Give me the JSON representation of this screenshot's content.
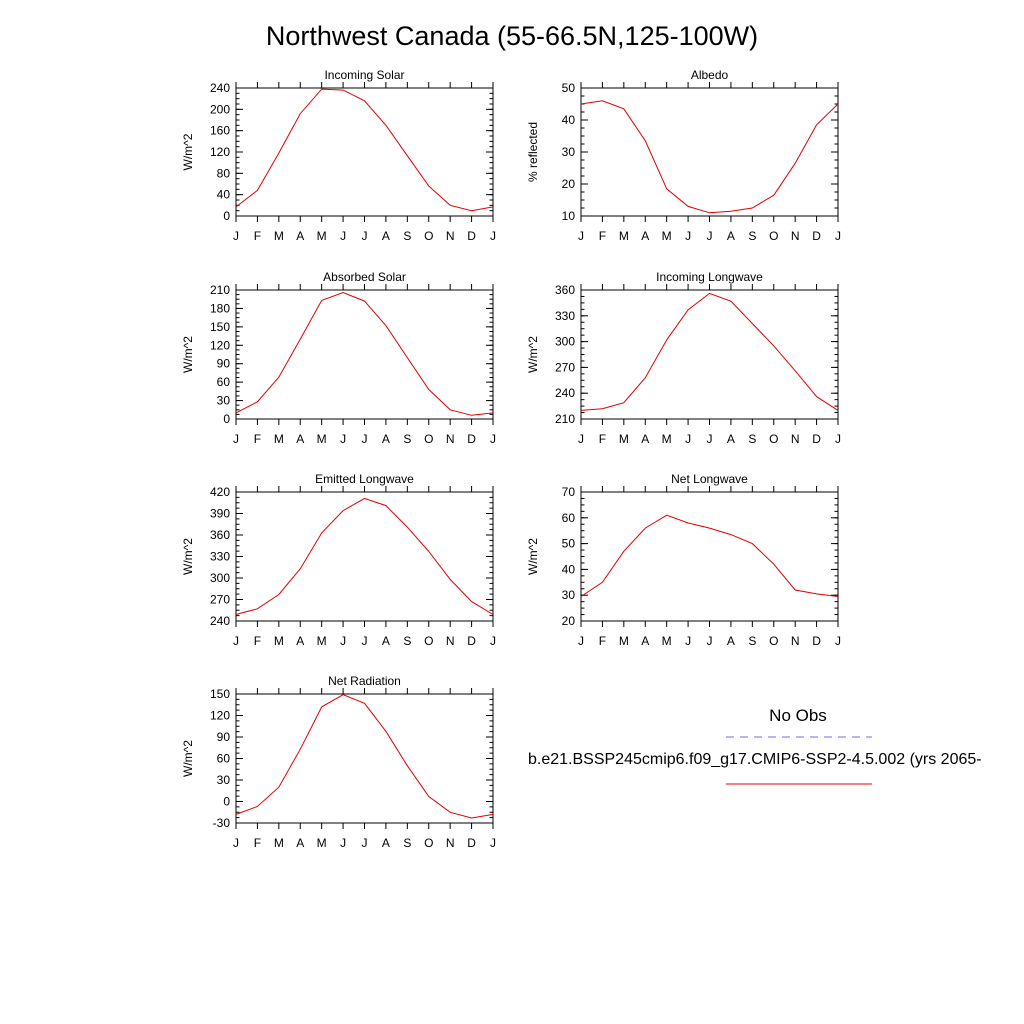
{
  "figure": {
    "title": "Northwest Canada (55-66.5N,125-100W)",
    "legend": {
      "obs_label": "No Obs",
      "case_label": "b.e21.BSSP245cmip6.f09_g17.CMIP6-SSP2-4.5.002 (yrs 2065-",
      "obs_color": "#6b6bff",
      "case_color": "#e00000"
    }
  },
  "chart_data": [
    {
      "type": "line",
      "title": "Incoming Solar",
      "ylabel": "W/m^2",
      "categories": [
        "J",
        "F",
        "M",
        "A",
        "M",
        "J",
        "J",
        "A",
        "S",
        "O",
        "N",
        "D",
        "J"
      ],
      "ylim": [
        0,
        240
      ],
      "yticks": [
        0,
        40,
        80,
        120,
        160,
        200,
        240
      ],
      "series": [
        {
          "values": [
            17,
            48,
            118,
            192,
            238,
            236,
            216,
            170,
            113,
            56,
            20,
            10,
            17
          ]
        }
      ]
    },
    {
      "type": "line",
      "title": "Albedo",
      "ylabel": "% reflected",
      "categories": [
        "J",
        "F",
        "M",
        "A",
        "M",
        "J",
        "J",
        "A",
        "S",
        "O",
        "N",
        "D",
        "J"
      ],
      "ylim": [
        10,
        50
      ],
      "yticks": [
        10,
        20,
        30,
        40,
        50
      ],
      "series": [
        {
          "values": [
            45,
            46,
            43.5,
            33.5,
            18.5,
            13,
            11,
            11.5,
            12.5,
            16.5,
            26.5,
            38.5,
            45
          ]
        }
      ]
    },
    {
      "type": "line",
      "title": "Absorbed Solar",
      "ylabel": "W/m^2",
      "categories": [
        "J",
        "F",
        "M",
        "A",
        "M",
        "J",
        "J",
        "A",
        "S",
        "O",
        "N",
        "D",
        "J"
      ],
      "ylim": [
        0,
        210
      ],
      "yticks": [
        0,
        30,
        60,
        90,
        120,
        150,
        180,
        210
      ],
      "series": [
        {
          "values": [
            10,
            28,
            68,
            130,
            193,
            206,
            192,
            152,
            100,
            48,
            15,
            6,
            10
          ]
        }
      ]
    },
    {
      "type": "line",
      "title": "Incoming Longwave",
      "ylabel": "W/m^2",
      "categories": [
        "J",
        "F",
        "M",
        "A",
        "M",
        "J",
        "J",
        "A",
        "S",
        "O",
        "N",
        "D",
        "J"
      ],
      "ylim": [
        210,
        360
      ],
      "yticks": [
        210,
        240,
        270,
        300,
        330,
        360
      ],
      "series": [
        {
          "values": [
            220,
            222,
            229,
            258,
            302,
            337,
            356,
            347,
            321,
            295,
            266,
            236,
            220
          ]
        }
      ]
    },
    {
      "type": "line",
      "title": "Emitted Longwave",
      "ylabel": "W/m^2",
      "categories": [
        "J",
        "F",
        "M",
        "A",
        "M",
        "J",
        "J",
        "A",
        "S",
        "O",
        "N",
        "D",
        "J"
      ],
      "ylim": [
        240,
        420
      ],
      "yticks": [
        240,
        270,
        300,
        330,
        360,
        390,
        420
      ],
      "series": [
        {
          "values": [
            249,
            257,
            277,
            313,
            363,
            394,
            411,
            401,
            371,
            337,
            298,
            267,
            249
          ]
        }
      ]
    },
    {
      "type": "line",
      "title": "Net Longwave",
      "ylabel": "W/m^2",
      "categories": [
        "J",
        "F",
        "M",
        "A",
        "M",
        "J",
        "J",
        "A",
        "S",
        "O",
        "N",
        "D",
        "J"
      ],
      "ylim": [
        20,
        70
      ],
      "yticks": [
        20,
        30,
        40,
        50,
        60,
        70
      ],
      "series": [
        {
          "values": [
            29.5,
            35,
            47,
            56,
            61,
            58,
            56,
            53.5,
            50,
            42,
            32,
            30.5,
            29.5
          ]
        }
      ]
    },
    {
      "type": "line",
      "title": "Net Radiation",
      "ylabel": "W/m^2",
      "categories": [
        "J",
        "F",
        "M",
        "A",
        "M",
        "J",
        "J",
        "A",
        "S",
        "O",
        "N",
        "D",
        "J"
      ],
      "ylim": [
        -30,
        150
      ],
      "yticks": [
        -30,
        0,
        30,
        60,
        90,
        120,
        150
      ],
      "series": [
        {
          "values": [
            -18,
            -7,
            20,
            73,
            132,
            149,
            137,
            98,
            50,
            7,
            -15,
            -23,
            -18
          ]
        }
      ]
    }
  ]
}
